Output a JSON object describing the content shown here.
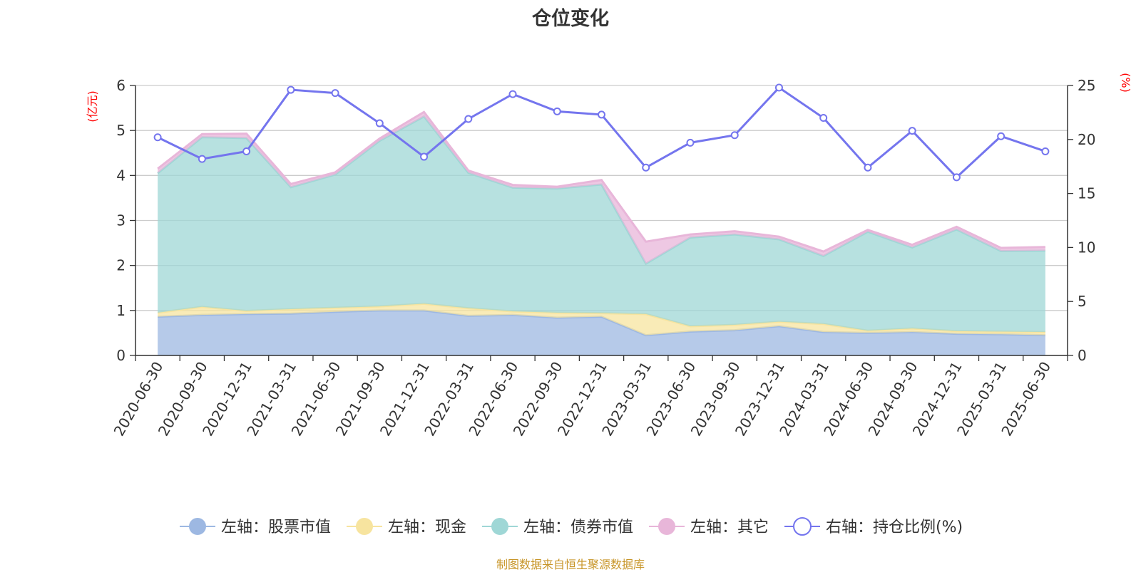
{
  "chart_data": {
    "type": "area",
    "title": "仓位变化",
    "y_left_label": "(亿元)",
    "y_right_label": "(%)",
    "y_left_lim": [
      0,
      6
    ],
    "y_left_ticks": [
      "0",
      "1",
      "2",
      "3",
      "4",
      "5",
      "6"
    ],
    "y_right_lim": [
      0,
      25
    ],
    "y_right_ticks": [
      "0",
      "5",
      "10",
      "15",
      "20",
      "25"
    ],
    "grid": true,
    "legend_position": "bottom",
    "categories": [
      "2020-06-30",
      "2020-09-30",
      "2020-12-31",
      "2021-03-31",
      "2021-06-30",
      "2021-09-30",
      "2021-12-31",
      "2022-03-31",
      "2022-06-30",
      "2022-09-30",
      "2022-12-31",
      "2023-03-31",
      "2023-06-30",
      "2023-09-30",
      "2023-12-31",
      "2024-03-31",
      "2024-06-30",
      "2024-09-30",
      "2024-12-31",
      "2025-03-31",
      "2025-06-30"
    ],
    "series": [
      {
        "name": "左轴：股票市值",
        "axis": "left",
        "type": "stacked-area",
        "color": "#9db8e2",
        "values": [
          0.86,
          0.9,
          0.92,
          0.93,
          0.97,
          1.0,
          1.0,
          0.88,
          0.9,
          0.84,
          0.86,
          0.45,
          0.53,
          0.56,
          0.65,
          0.52,
          0.5,
          0.52,
          0.48,
          0.47,
          0.45
        ]
      },
      {
        "name": "左轴：现金",
        "axis": "left",
        "type": "stacked-area",
        "color": "#f7e49f",
        "values": [
          0.09,
          0.18,
          0.07,
          0.1,
          0.09,
          0.09,
          0.15,
          0.17,
          0.08,
          0.11,
          0.08,
          0.47,
          0.12,
          0.12,
          0.1,
          0.18,
          0.05,
          0.08,
          0.06,
          0.06,
          0.07
        ]
      },
      {
        "name": "左轴：债券市值",
        "axis": "left",
        "type": "stacked-area",
        "color": "#9fd7d6",
        "values": [
          3.1,
          3.77,
          3.84,
          2.71,
          2.96,
          3.68,
          4.16,
          3.01,
          2.75,
          2.76,
          2.86,
          1.12,
          1.97,
          2.01,
          1.83,
          1.51,
          2.2,
          1.8,
          2.26,
          1.79,
          1.81
        ]
      },
      {
        "name": "左轴：其它",
        "axis": "left",
        "type": "stacked-area",
        "color": "#e8b6d9",
        "values": [
          0.1,
          0.07,
          0.1,
          0.07,
          0.05,
          0.05,
          0.1,
          0.05,
          0.06,
          0.04,
          0.1,
          0.49,
          0.07,
          0.07,
          0.06,
          0.1,
          0.04,
          0.06,
          0.06,
          0.07,
          0.08
        ]
      },
      {
        "name": "右轴：持仓比例(%)",
        "axis": "right",
        "type": "line",
        "color": "#7475ee",
        "values": [
          20.2,
          18.2,
          18.9,
          24.6,
          24.3,
          21.5,
          18.4,
          21.9,
          24.2,
          22.6,
          22.3,
          17.4,
          19.7,
          20.4,
          24.8,
          22.0,
          17.4,
          20.8,
          16.5,
          20.3,
          18.9
        ]
      }
    ]
  },
  "source_note": "制图数据来自恒生聚源数据库"
}
